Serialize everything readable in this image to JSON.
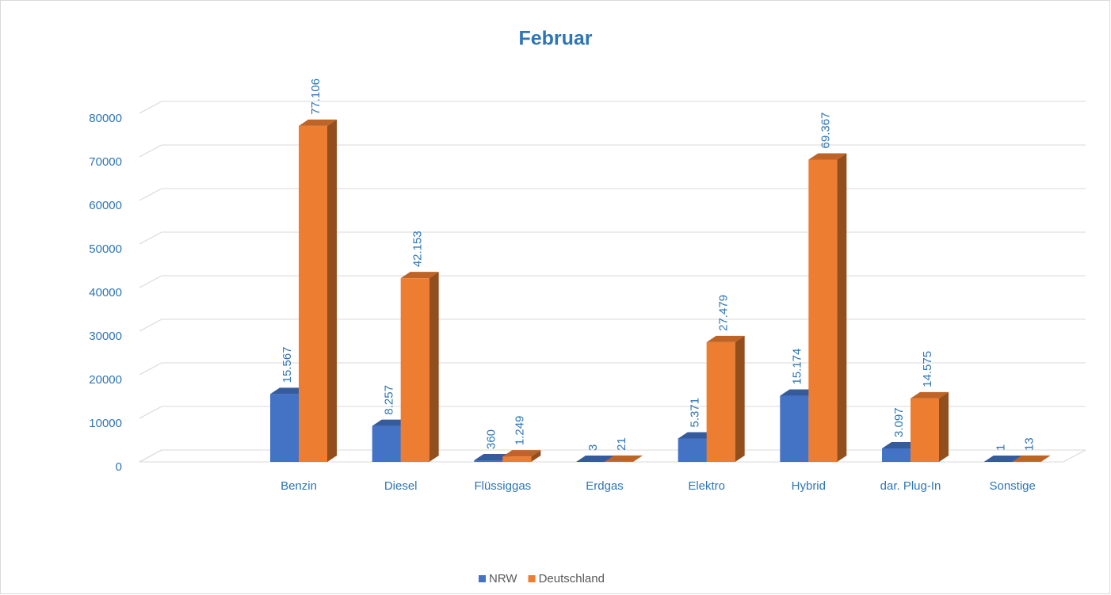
{
  "chart_data": {
    "type": "bar3d",
    "title": "Februar",
    "categories": [
      null,
      "Benzin",
      "Diesel",
      "Flüssiggas",
      "Erdgas",
      "Elektro",
      "Hybrid",
      "dar. Plug-In",
      "Sonstige"
    ],
    "series": [
      {
        "name": "NRW",
        "color": "#4472c4",
        "values": [
          null,
          15567,
          8257,
          360,
          3,
          5371,
          15174,
          3097,
          1
        ],
        "value_labels": [
          null,
          "15.567",
          "8.257",
          "360",
          "3",
          "5.371",
          "15.174",
          "3.097",
          "1"
        ]
      },
      {
        "name": "Deutschland",
        "color": "#ed7d31",
        "values": [
          null,
          77106,
          42153,
          1249,
          21,
          27479,
          69367,
          14575,
          13
        ],
        "value_labels": [
          null,
          "77.106",
          "42.153",
          "1.249",
          "21",
          "27.479",
          "69.367",
          "14.575",
          "13"
        ]
      }
    ],
    "ylim": [
      0,
      80000
    ],
    "yticks": [
      0,
      10000,
      20000,
      30000,
      40000,
      50000,
      60000,
      70000,
      80000
    ],
    "grid": true,
    "legend": "bottom"
  }
}
